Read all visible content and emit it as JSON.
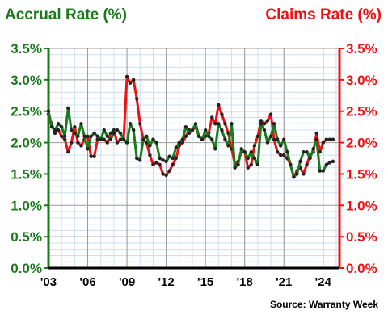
{
  "colors": {
    "accrual": "#1b7a1b",
    "claims": "#ee1111",
    "grid": "#9a9a9a",
    "minor_grid": "#c9dff4"
  },
  "source": "Source: Warranty Week",
  "chart_data": {
    "type": "line",
    "title": "",
    "left_axis_title": "Accrual Rate (%)",
    "right_axis_title": "Claims Rate (%)",
    "ylim": [
      0,
      3.5
    ],
    "yticks": [
      "0.0%",
      "0.5%",
      "1.0%",
      "1.5%",
      "2.0%",
      "2.5%",
      "3.0%",
      "3.5%"
    ],
    "xlim": [
      2003,
      2025.25
    ],
    "xticks": [
      {
        "x": 2003,
        "label": "'03"
      },
      {
        "x": 2006,
        "label": "'06"
      },
      {
        "x": 2009,
        "label": "'09"
      },
      {
        "x": 2012,
        "label": "'12"
      },
      {
        "x": 2015,
        "label": "'15"
      },
      {
        "x": 2018,
        "label": "'18"
      },
      {
        "x": 2021,
        "label": "'21"
      },
      {
        "x": 2024,
        "label": "'24"
      }
    ],
    "grid": true,
    "series": [
      {
        "name": "Accrual Rate (%)",
        "color": "#1b7a1b",
        "x": [
          2003,
          2003.25,
          2003.5,
          2003.75,
          2004,
          2004.25,
          2004.5,
          2004.75,
          2005,
          2005.25,
          2005.5,
          2005.75,
          2006,
          2006.25,
          2006.5,
          2006.75,
          2007,
          2007.25,
          2007.5,
          2007.75,
          2008,
          2008.25,
          2008.5,
          2008.75,
          2009,
          2009.25,
          2009.5,
          2009.75,
          2010,
          2010.25,
          2010.5,
          2010.75,
          2011,
          2011.25,
          2011.5,
          2011.75,
          2012,
          2012.25,
          2012.5,
          2012.75,
          2013,
          2013.25,
          2013.5,
          2013.75,
          2014,
          2014.25,
          2014.5,
          2014.75,
          2015,
          2015.25,
          2015.5,
          2015.75,
          2016,
          2016.25,
          2016.5,
          2016.75,
          2017,
          2017.25,
          2017.5,
          2017.75,
          2018,
          2018.25,
          2018.5,
          2018.75,
          2019,
          2019.25,
          2019.5,
          2019.75,
          2020,
          2020.25,
          2020.5,
          2020.75,
          2021,
          2021.25,
          2021.5,
          2021.75,
          2022,
          2022.25,
          2022.5,
          2022.75,
          2023,
          2023.25,
          2023.5,
          2023.75,
          2024,
          2024.25,
          2024.5,
          2024.75
        ],
        "y": [
          2.5,
          2.25,
          2.2,
          2.3,
          2.25,
          2.1,
          2.55,
          2.2,
          2.15,
          2.1,
          2.3,
          2.1,
          1.9,
          2.1,
          2.15,
          2.1,
          2.05,
          2.2,
          2.1,
          2.05,
          2.15,
          2.2,
          2.15,
          2.05,
          2.0,
          2.3,
          2.2,
          1.75,
          1.72,
          2.05,
          2.1,
          1.95,
          2.05,
          2.0,
          1.75,
          1.72,
          1.7,
          1.78,
          1.75,
          1.92,
          2.0,
          2.05,
          2.25,
          2.15,
          2.2,
          2.3,
          2.1,
          2.05,
          2.2,
          2.1,
          2.05,
          1.9,
          2.3,
          2.2,
          2.05,
          1.95,
          2.3,
          1.6,
          1.65,
          1.9,
          1.85,
          1.75,
          1.85,
          1.75,
          1.65,
          2.3,
          2.2,
          2.0,
          2.1,
          2.3,
          2.05,
          1.95,
          2.05,
          1.85,
          1.65,
          1.45,
          1.5,
          1.7,
          1.85,
          1.85,
          1.75,
          1.9,
          2.05,
          1.55,
          1.55,
          1.65,
          1.68,
          1.7
        ]
      },
      {
        "name": "Claims Rate (%)",
        "color": "#ee1111",
        "x": [
          2003,
          2003.25,
          2003.5,
          2003.75,
          2004,
          2004.25,
          2004.5,
          2004.75,
          2005,
          2005.25,
          2005.5,
          2005.75,
          2006,
          2006.25,
          2006.5,
          2006.75,
          2007,
          2007.25,
          2007.5,
          2007.75,
          2008,
          2008.25,
          2008.5,
          2008.75,
          2009,
          2009.25,
          2009.5,
          2009.75,
          2010,
          2010.25,
          2010.5,
          2010.75,
          2011,
          2011.25,
          2011.5,
          2011.75,
          2012,
          2012.25,
          2012.5,
          2012.75,
          2013,
          2013.25,
          2013.5,
          2013.75,
          2014,
          2014.25,
          2014.5,
          2014.75,
          2015,
          2015.25,
          2015.5,
          2015.75,
          2016,
          2016.25,
          2016.5,
          2016.75,
          2017,
          2017.25,
          2017.5,
          2017.75,
          2018,
          2018.25,
          2018.5,
          2018.75,
          2019,
          2019.25,
          2019.5,
          2019.75,
          2020,
          2020.25,
          2020.5,
          2020.75,
          2021,
          2021.25,
          2021.5,
          2021.75,
          2022,
          2022.25,
          2022.5,
          2022.75,
          2023,
          2023.25,
          2023.5,
          2023.75,
          2024,
          2024.25,
          2024.5,
          2024.75
        ],
        "y": [
          2.45,
          2.3,
          2.15,
          2.2,
          2.1,
          2.05,
          1.85,
          2.0,
          2.25,
          2.0,
          1.95,
          2.05,
          2.1,
          1.78,
          1.78,
          2.05,
          2.05,
          2.05,
          2.0,
          2.15,
          2.2,
          2.0,
          2.05,
          2.05,
          3.05,
          2.95,
          3.0,
          2.7,
          2.3,
          2.05,
          2.0,
          1.8,
          1.65,
          1.68,
          1.65,
          1.5,
          1.48,
          1.55,
          1.65,
          1.75,
          1.95,
          2.0,
          2.1,
          2.2,
          2.2,
          2.25,
          2.1,
          2.05,
          2.1,
          2.15,
          2.4,
          2.3,
          2.6,
          2.45,
          2.3,
          2.15,
          1.9,
          1.65,
          1.7,
          1.85,
          1.85,
          1.6,
          1.65,
          1.95,
          2.1,
          2.35,
          2.3,
          2.35,
          2.45,
          2.05,
          1.85,
          1.8,
          1.8,
          1.75,
          1.65,
          1.45,
          1.55,
          1.6,
          1.5,
          1.65,
          1.8,
          1.85,
          2.15,
          1.85,
          2.0,
          2.05,
          2.05,
          2.05
        ]
      }
    ]
  }
}
